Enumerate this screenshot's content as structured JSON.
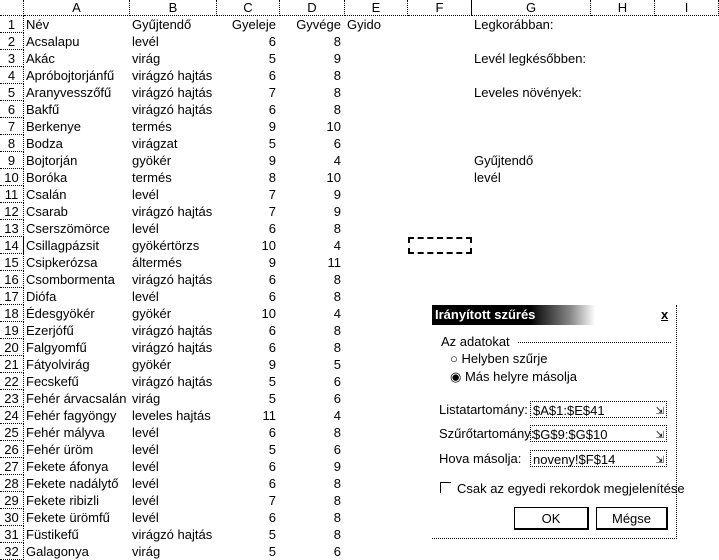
{
  "columns": [
    "A",
    "B",
    "C",
    "D",
    "E",
    "F",
    "G",
    "H",
    "I"
  ],
  "headers": [
    "Név",
    "Gyűjtendő",
    "Gyeleje",
    "Gyvége",
    "Gyido"
  ],
  "rows": [
    [
      "Acsalapu",
      "levél",
      "6",
      "8"
    ],
    [
      "Akác",
      "virág",
      "5",
      "9"
    ],
    [
      "Apróbojtorjánfű",
      "virágzó hajtás",
      "6",
      "8"
    ],
    [
      "Aranyvesszőfű",
      "virágzó hajtás",
      "7",
      "8"
    ],
    [
      "Bakfű",
      "virágzó hajtás",
      "6",
      "8"
    ],
    [
      "Berkenye",
      "termés",
      "9",
      "10"
    ],
    [
      "Bodza",
      "virágzat",
      "5",
      "6"
    ],
    [
      "Bojtorján",
      "gyökér",
      "9",
      "4"
    ],
    [
      "Boróka",
      "termés",
      "8",
      "10"
    ],
    [
      "Csalán",
      "levél",
      "7",
      "9"
    ],
    [
      "Csarab",
      "virágzó hajtás",
      "7",
      "9"
    ],
    [
      "Cserszömörce",
      "levél",
      "6",
      "8"
    ],
    [
      "Csillagpázsit",
      "gyökértörzs",
      "10",
      "4"
    ],
    [
      "Csipkerózsa",
      "áltermés",
      "9",
      "11"
    ],
    [
      "Csombormenta",
      "virágzó hajtás",
      "6",
      "8"
    ],
    [
      "Diófa",
      "levél",
      "6",
      "8"
    ],
    [
      "Édesgyökér",
      "gyökér",
      "10",
      "4"
    ],
    [
      "Ezerjófű",
      "virágzó hajtás",
      "6",
      "8"
    ],
    [
      "Falgyomfű",
      "virágzó hajtás",
      "6",
      "8"
    ],
    [
      "Fátyolvirág",
      "gyökér",
      "9",
      "5"
    ],
    [
      "Fecskefű",
      "virágzó hajtás",
      "5",
      "6"
    ],
    [
      "Fehér árvacsalán",
      "virág",
      "5",
      "6"
    ],
    [
      "Fehér fagyöngy",
      "leveles hajtás",
      "11",
      "4"
    ],
    [
      "Fehér mályva",
      "levél",
      "6",
      "8"
    ],
    [
      "Fehér üröm",
      "levél",
      "5",
      "6"
    ],
    [
      "Fekete áfonya",
      "levél",
      "6",
      "9"
    ],
    [
      "Fekete nadálytő",
      "levél",
      "6",
      "8"
    ],
    [
      "Fekete ribizli",
      "levél",
      "7",
      "8"
    ],
    [
      "Fekete ürömfű",
      "levél",
      "6",
      "8"
    ],
    [
      "Füstikefű",
      "virágzó hajtás",
      "5",
      "8"
    ],
    [
      "Galagonya",
      "virág",
      "5",
      "6"
    ]
  ],
  "g_column": {
    "g1": "Legkorábban:",
    "g3": "Levél legkésőbben:",
    "g5": "Leveles növények:",
    "g9": "Gyűjtendő",
    "g10": "levél"
  },
  "dialog": {
    "title": "Irányított szűrés",
    "close": "x",
    "group_label": "Az adatokat",
    "radio_inplace": "Helyben szűrje",
    "radio_copy": "Más helyre másolja",
    "selected": "copy",
    "list_label": "Listatartomány:",
    "list_value": "$A$1:$E$41",
    "criteria_label": "Szűrőtartomány:",
    "criteria_value": "$G$9:$G$10",
    "copyto_label": "Hova másolja:",
    "copyto_value": "noveny!$F$14",
    "unique_label": "Csak az egyedi rekordok megjelenítése",
    "unique_checked": false,
    "ok": "OK",
    "cancel": "Mégse"
  }
}
